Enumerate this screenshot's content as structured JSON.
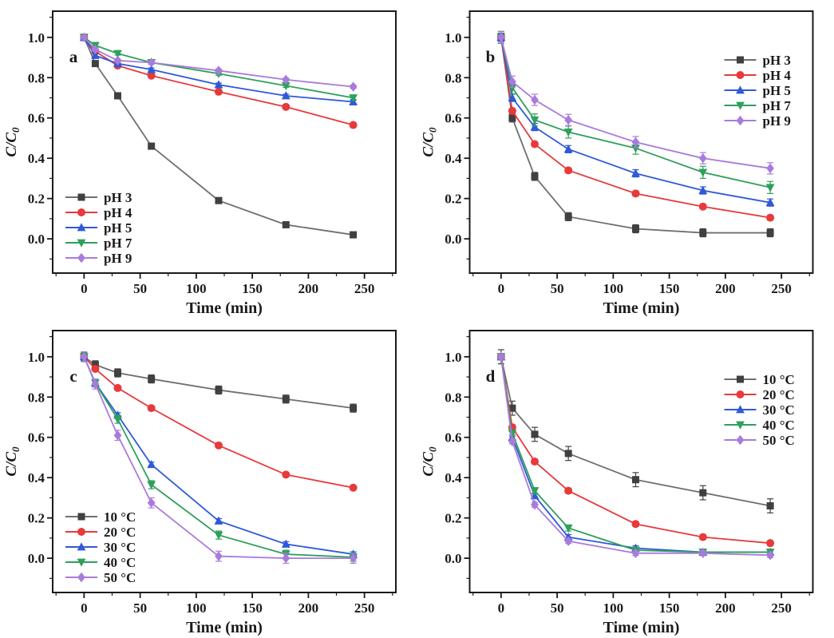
{
  "figure": {
    "background": "#ffffff",
    "axis_color": "#1a1a1a",
    "text_color": "#1a1a1a"
  },
  "axes": {
    "xlabel": "Time (min)",
    "ylabel": "C/C0",
    "x_major_ticks": [
      0,
      50,
      100,
      150,
      200,
      250
    ],
    "x_minor_ticks": [
      -25,
      25,
      75,
      125,
      175,
      225,
      275
    ],
    "y_major_ticks": [
      0.0,
      0.2,
      0.4,
      0.6,
      0.8,
      1.0
    ],
    "y_minor_ticks": [
      -0.1,
      0.1,
      0.3,
      0.5,
      0.7,
      0.9,
      1.1
    ],
    "xlim": [
      -28,
      278
    ],
    "ylim": [
      -0.17,
      1.13
    ]
  },
  "chart_data": [
    {
      "panel": "a",
      "type": "line",
      "title": "",
      "xlabel": "Time (min)",
      "ylabel": "C/C0",
      "xlim": [
        -28,
        278
      ],
      "ylim": [
        -0.17,
        1.13
      ],
      "grid": false,
      "legend_pos": "lower-left",
      "x": [
        0,
        10,
        30,
        60,
        120,
        180,
        240
      ],
      "series": [
        {
          "name": "pH 3",
          "marker": "square",
          "line_color": "#6f6f6f",
          "marker_color": "#404040",
          "err": 0.008,
          "values": [
            1.0,
            0.87,
            0.71,
            0.46,
            0.19,
            0.07,
            0.02
          ]
        },
        {
          "name": "pH 4",
          "marker": "circle",
          "line_color": "#e8393b",
          "marker_color": "#e8393b",
          "err": 0.008,
          "values": [
            1.0,
            0.93,
            0.86,
            0.81,
            0.73,
            0.655,
            0.565
          ]
        },
        {
          "name": "pH 5",
          "marker": "triangle-up",
          "line_color": "#2f59d8",
          "marker_color": "#2f59d8",
          "err": 0.008,
          "values": [
            1.0,
            0.91,
            0.87,
            0.84,
            0.765,
            0.71,
            0.68
          ]
        },
        {
          "name": "pH 7",
          "marker": "triangle-down",
          "line_color": "#2ea05a",
          "marker_color": "#2ea05a",
          "err": 0.008,
          "values": [
            1.0,
            0.96,
            0.92,
            0.875,
            0.82,
            0.76,
            0.7
          ]
        },
        {
          "name": "pH 9",
          "marker": "diamond",
          "line_color": "#a97bdc",
          "marker_color": "#a97bdc",
          "err": 0.008,
          "values": [
            1.0,
            0.94,
            0.885,
            0.875,
            0.835,
            0.79,
            0.755
          ]
        }
      ]
    },
    {
      "panel": "b",
      "type": "line",
      "title": "",
      "xlabel": "Time (min)",
      "ylabel": "C/C0",
      "xlim": [
        -28,
        278
      ],
      "ylim": [
        -0.17,
        1.13
      ],
      "grid": false,
      "legend_pos": "upper-right",
      "x": [
        0,
        10,
        30,
        60,
        120,
        180,
        240
      ],
      "series": [
        {
          "name": "pH 3",
          "marker": "square",
          "line_color": "#6f6f6f",
          "marker_color": "#404040",
          "err": 0.02,
          "values": [
            1.0,
            0.6,
            0.31,
            0.11,
            0.05,
            0.03,
            0.03
          ]
        },
        {
          "name": "pH 4",
          "marker": "circle",
          "line_color": "#e8393b",
          "marker_color": "#e8393b",
          "err": 0.012,
          "values": [
            1.0,
            0.635,
            0.47,
            0.34,
            0.225,
            0.16,
            0.105
          ]
        },
        {
          "name": "pH 5",
          "marker": "triangle-up",
          "line_color": "#2f59d8",
          "marker_color": "#2f59d8",
          "err": 0.018,
          "values": [
            1.0,
            0.7,
            0.555,
            0.445,
            0.325,
            0.24,
            0.18
          ]
        },
        {
          "name": "pH 7",
          "marker": "triangle-down",
          "line_color": "#2ea05a",
          "marker_color": "#2ea05a",
          "err": 0.03,
          "values": [
            1.0,
            0.75,
            0.59,
            0.53,
            0.45,
            0.33,
            0.255
          ]
        },
        {
          "name": "pH 9",
          "marker": "diamond",
          "line_color": "#a97bdc",
          "marker_color": "#a97bdc",
          "err": 0.028,
          "values": [
            1.0,
            0.78,
            0.69,
            0.59,
            0.48,
            0.4,
            0.35
          ]
        }
      ]
    },
    {
      "panel": "c",
      "type": "line",
      "title": "",
      "xlabel": "Time (min)",
      "ylabel": "C/C0",
      "xlim": [
        -28,
        278
      ],
      "ylim": [
        -0.17,
        1.13
      ],
      "grid": false,
      "legend_pos": "lower-left",
      "x": [
        0,
        10,
        30,
        60,
        120,
        180,
        240
      ],
      "series": [
        {
          "name": "10 °C",
          "marker": "square",
          "line_color": "#6f6f6f",
          "marker_color": "#404040",
          "err": 0.02,
          "values": [
            1.0,
            0.96,
            0.92,
            0.89,
            0.835,
            0.79,
            0.745
          ]
        },
        {
          "name": "20 °C",
          "marker": "circle",
          "line_color": "#e8393b",
          "marker_color": "#e8393b",
          "err": 0.01,
          "values": [
            1.0,
            0.94,
            0.845,
            0.745,
            0.56,
            0.415,
            0.35
          ]
        },
        {
          "name": "30 °C",
          "marker": "triangle-up",
          "line_color": "#2f59d8",
          "marker_color": "#2f59d8",
          "err": 0.012,
          "values": [
            1.0,
            0.87,
            0.71,
            0.465,
            0.185,
            0.07,
            0.02
          ]
        },
        {
          "name": "40 °C",
          "marker": "triangle-down",
          "line_color": "#2ea05a",
          "marker_color": "#2ea05a",
          "err": 0.02,
          "values": [
            1.0,
            0.87,
            0.69,
            0.365,
            0.115,
            0.02,
            0.005
          ]
        },
        {
          "name": "50 °C",
          "marker": "diamond",
          "line_color": "#a97bdc",
          "marker_color": "#a97bdc",
          "err": 0.025,
          "values": [
            1.0,
            0.865,
            0.61,
            0.275,
            0.01,
            0.0,
            0.0
          ]
        }
      ]
    },
    {
      "panel": "d",
      "type": "line",
      "title": "",
      "xlabel": "Time (min)",
      "ylabel": "C/C0",
      "xlim": [
        -28,
        278
      ],
      "ylim": [
        -0.17,
        1.13
      ],
      "grid": false,
      "legend_pos": "upper-right",
      "x": [
        0,
        10,
        30,
        60,
        120,
        180,
        240
      ],
      "series": [
        {
          "name": "10 °C",
          "marker": "square",
          "line_color": "#6f6f6f",
          "marker_color": "#404040",
          "err": 0.035,
          "values": [
            1.0,
            0.745,
            0.615,
            0.52,
            0.39,
            0.325,
            0.26
          ]
        },
        {
          "name": "20 °C",
          "marker": "circle",
          "line_color": "#e8393b",
          "marker_color": "#e8393b",
          "err": 0.012,
          "values": [
            1.0,
            0.65,
            0.48,
            0.335,
            0.17,
            0.105,
            0.075
          ]
        },
        {
          "name": "30 °C",
          "marker": "triangle-up",
          "line_color": "#2f59d8",
          "marker_color": "#2f59d8",
          "err": 0.012,
          "values": [
            1.0,
            0.6,
            0.31,
            0.105,
            0.05,
            0.03,
            0.03
          ]
        },
        {
          "name": "40 °C",
          "marker": "triangle-down",
          "line_color": "#2ea05a",
          "marker_color": "#2ea05a",
          "err": 0.015,
          "values": [
            1.0,
            0.62,
            0.335,
            0.15,
            0.04,
            0.03,
            0.03
          ]
        },
        {
          "name": "50 °C",
          "marker": "diamond",
          "line_color": "#a97bdc",
          "marker_color": "#a97bdc",
          "err": 0.012,
          "values": [
            1.0,
            0.58,
            0.265,
            0.085,
            0.025,
            0.025,
            0.015
          ]
        }
      ]
    }
  ]
}
